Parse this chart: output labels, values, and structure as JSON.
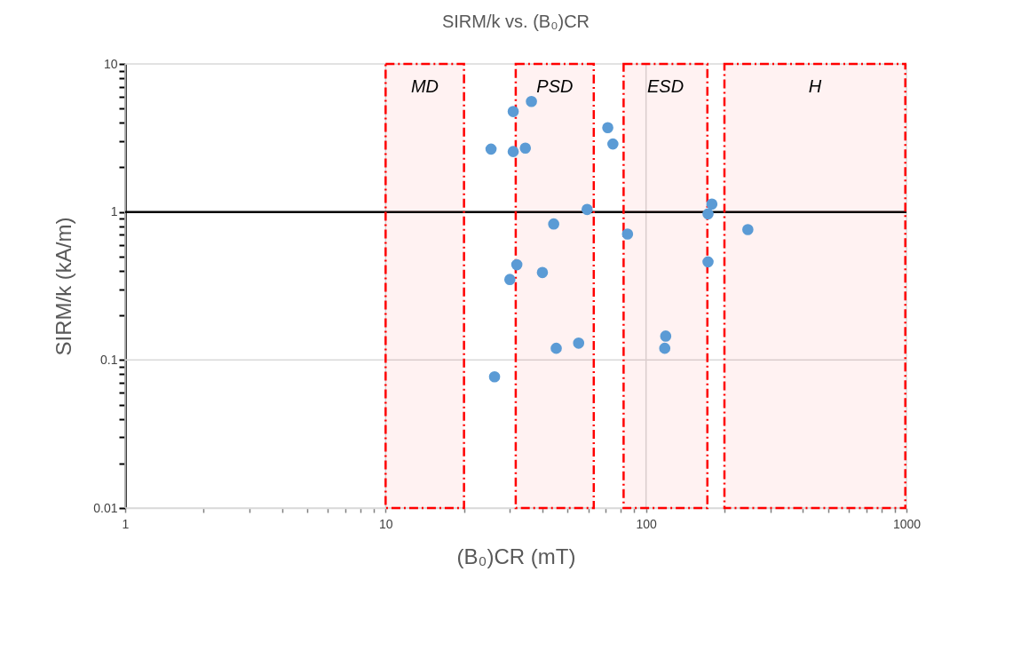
{
  "chart_data": {
    "type": "scatter",
    "title": "SIRM/k vs. (B₀)CR",
    "xlabel": "(B₀)CR (mT)",
    "ylabel": "SIRM/k (kA/m)",
    "log": "xy",
    "grid": true,
    "marker": "circle",
    "xlim": [
      1,
      1000
    ],
    "ylim": [
      0.01,
      10
    ],
    "xticks": [
      1,
      {
        "value": 2,
        "label": null
      },
      {
        "value": 3,
        "label": null
      },
      {
        "value": 4,
        "label": null
      },
      {
        "value": 5,
        "label": null
      },
      {
        "value": 6,
        "label": null
      },
      {
        "value": 7,
        "label": null
      },
      {
        "value": 8,
        "label": null
      },
      {
        "value": 9,
        "label": null
      },
      10,
      {
        "value": 20,
        "label": null
      },
      {
        "value": 30,
        "label": null
      },
      {
        "value": 40,
        "label": null
      },
      {
        "value": 50,
        "label": null
      },
      {
        "value": 60,
        "label": null
      },
      {
        "value": 70,
        "label": null
      },
      {
        "value": 80,
        "label": null
      },
      {
        "value": 90,
        "label": null
      },
      100,
      {
        "value": 200,
        "label": null
      },
      {
        "value": 300,
        "label": null
      },
      {
        "value": 400,
        "label": null
      },
      {
        "value": 500,
        "label": null
      },
      {
        "value": 600,
        "label": null
      },
      {
        "value": 700,
        "label": null
      },
      {
        "value": 800,
        "label": null
      },
      {
        "value": 900,
        "label": null
      },
      1000
    ],
    "yticks": [
      0.01,
      {
        "value": 0.02,
        "label": null
      },
      {
        "value": 0.03,
        "label": null
      },
      {
        "value": 0.04,
        "label": null
      },
      {
        "value": 0.05,
        "label": null
      },
      {
        "value": 0.06,
        "label": null
      },
      {
        "value": 0.07,
        "label": null
      },
      {
        "value": 0.08,
        "label": null
      },
      {
        "value": 0.09,
        "label": null
      },
      0.1,
      {
        "value": 0.2,
        "label": null
      },
      {
        "value": 0.3,
        "label": null
      },
      {
        "value": 0.4,
        "label": null
      },
      {
        "value": 0.5,
        "label": null
      },
      {
        "value": 0.6,
        "label": null
      },
      {
        "value": 0.7,
        "label": null
      },
      {
        "value": 0.8,
        "label": null
      },
      {
        "value": 0.9,
        "label": null
      },
      1,
      {
        "value": 2,
        "label": null
      },
      {
        "value": 3,
        "label": null
      },
      {
        "value": 4,
        "label": null
      },
      {
        "value": 5,
        "label": null
      },
      {
        "value": 6,
        "label": null
      },
      {
        "value": 7,
        "label": null
      },
      {
        "value": 8,
        "label": null
      },
      {
        "value": 9,
        "label": null
      },
      10
    ],
    "series": [
      {
        "color": "#5b9bd5",
        "x": [
          25.4,
          30.9,
          30.9,
          34.4,
          36.3,
          71.3,
          74.6,
          59.4,
          44.2,
          84.9,
          31.9,
          30.0,
          40.0,
          45.2,
          55.1,
          26.2,
          119,
          118,
          179,
          173,
          173,
          246
        ],
        "values": [
          2.66,
          4.77,
          2.56,
          2.7,
          5.58,
          3.71,
          2.88,
          1.04,
          0.83,
          0.71,
          0.44,
          0.35,
          0.39,
          0.12,
          0.13,
          0.077,
          0.145,
          0.12,
          1.13,
          0.97,
          0.46,
          0.76
        ]
      }
    ],
    "ref_lines": [
      {
        "axis": "y",
        "value": 1,
        "color": "#000000"
      }
    ],
    "bands": [
      {
        "axis": "x",
        "from": 10,
        "to": 20,
        "label": "MD",
        "color": "#ff0000"
      },
      {
        "axis": "x",
        "from": 31.6,
        "to": 63,
        "label": "PSD",
        "color": "#ff0000"
      },
      {
        "axis": "x",
        "from": 82,
        "to": 172,
        "label": "ESD",
        "color": "#ff0000"
      },
      {
        "axis": "x",
        "from": 200,
        "to": 990,
        "label": "H",
        "color": "#ff0000"
      }
    ]
  }
}
